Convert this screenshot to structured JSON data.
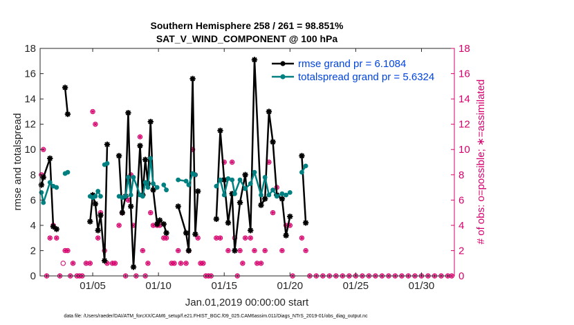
{
  "chart_data": {
    "type": "line",
    "title_line1": "Southern Hemisphere 258 / 261 = 98.851%",
    "title_line2": "SAT_V_WIND_COMPONENT @ 100 hPa",
    "xlabel": "Jan.01,2019 00:00:00 start",
    "ylabel_left": "rmse and totalspread",
    "ylabel_right": "# of obs: o=possible; ∗=assimilated",
    "xlim": [
      1,
      32.5
    ],
    "ylim": [
      0,
      18
    ],
    "ylim_right": [
      0,
      18
    ],
    "x_ticks": [
      5,
      10,
      15,
      20,
      25,
      30
    ],
    "x_tick_labels": [
      "01/05",
      "01/10",
      "01/15",
      "01/20",
      "01/25",
      "01/30"
    ],
    "y_ticks": [
      0,
      2,
      4,
      6,
      8,
      10,
      12,
      14,
      16,
      18
    ],
    "y_tick_labels": [
      "0",
      "2",
      "4",
      "6",
      "8",
      "10",
      "12",
      "14",
      "16",
      "18"
    ],
    "y_ticks_right": [
      0,
      2,
      4,
      6,
      8,
      10,
      12,
      14,
      16,
      18
    ],
    "y_tick_labels_right": [
      "0",
      "2",
      "4",
      "6",
      "8",
      "10",
      "12",
      "14",
      "16",
      "18"
    ],
    "legend": [
      "rmse grand pr = 6.1084",
      "totalspread grand pr = 5.6324"
    ],
    "series": [
      {
        "name": "rmse grand pr = 6.1084",
        "color": "#000000",
        "points": [
          [
            1.1,
            7.2
          ],
          [
            1.25,
            7.8
          ],
          [
            1.75,
            9.3
          ],
          [
            2.0,
            3.9
          ],
          [
            2.25,
            3.7
          ],
          [
            null,
            null
          ],
          [
            2.9,
            14.9
          ],
          [
            3.1,
            12.8
          ],
          [
            null,
            null
          ],
          [
            4.8,
            4.3
          ],
          [
            5.0,
            6.4
          ],
          [
            5.2,
            5.7
          ],
          [
            5.4,
            3.6
          ],
          [
            5.6,
            4.8
          ],
          [
            5.9,
            1.2
          ],
          [
            6.1,
            10.4
          ],
          [
            null,
            null
          ],
          [
            7.0,
            9.5
          ],
          [
            7.25,
            5.0
          ],
          [
            7.5,
            6.3
          ],
          [
            7.7,
            12.9
          ],
          [
            7.9,
            5.5
          ],
          [
            8.1,
            0.7
          ],
          [
            8.6,
            10.3
          ],
          [
            8.8,
            6.4
          ],
          [
            9.0,
            9.2
          ],
          [
            9.2,
            7.3
          ],
          [
            9.4,
            12.2
          ],
          [
            9.6,
            6.8
          ],
          [
            9.9,
            4.1
          ],
          [
            10.1,
            4.4
          ],
          [
            10.4,
            4.1
          ],
          [
            10.6,
            3.4
          ],
          [
            null,
            null
          ],
          [
            11.5,
            5.5
          ],
          [
            12.1,
            3.4
          ],
          [
            12.3,
            2.0
          ],
          [
            12.6,
            15.6
          ],
          [
            12.8,
            3.3
          ],
          [
            13.0,
            6.7
          ],
          [
            null,
            null
          ],
          [
            14.4,
            4.5
          ],
          [
            14.7,
            11.5
          ],
          [
            15.0,
            7.6
          ],
          [
            15.3,
            4.2
          ],
          [
            15.6,
            6.5
          ],
          [
            15.8,
            2.0
          ],
          [
            16.2,
            5.8
          ],
          [
            16.6,
            8.0
          ],
          [
            17.0,
            3.6
          ],
          [
            17.3,
            17.1
          ],
          [
            17.8,
            5.6
          ],
          [
            18.1,
            6.1
          ],
          [
            18.4,
            13.0
          ],
          [
            18.7,
            10.6
          ],
          [
            19.0,
            6.4
          ],
          [
            19.4,
            6.1
          ],
          [
            19.7,
            3.2
          ],
          [
            20.0,
            4.7
          ],
          [
            null,
            null
          ],
          [
            20.9,
            9.5
          ],
          [
            21.2,
            4.2
          ]
        ]
      },
      {
        "name": "totalspread grand pr = 5.6324",
        "color": "#008080",
        "points": [
          [
            1.1,
            6.6
          ],
          [
            1.25,
            5.8
          ],
          [
            1.75,
            7.4
          ],
          [
            2.0,
            7.1
          ],
          [
            2.25,
            7.0
          ],
          [
            null,
            null
          ],
          [
            2.9,
            8.1
          ],
          [
            3.1,
            8.2
          ],
          [
            null,
            null
          ],
          [
            4.8,
            6.3
          ],
          [
            5.0,
            6.2
          ],
          [
            5.2,
            6.3
          ],
          [
            5.4,
            6.7
          ],
          [
            5.6,
            6.3
          ],
          [
            null,
            null
          ],
          [
            5.9,
            8.8
          ],
          [
            6.1,
            8.9
          ],
          [
            null,
            null
          ],
          [
            7.0,
            6.3
          ],
          [
            7.25,
            6.2
          ],
          [
            7.5,
            6.3
          ],
          [
            7.7,
            7.8
          ],
          [
            7.9,
            6.4
          ],
          [
            8.1,
            7.8
          ],
          [
            8.6,
            6.4
          ],
          [
            8.8,
            6.3
          ],
          [
            9.0,
            7.4
          ],
          [
            9.2,
            7.0
          ],
          [
            9.4,
            9.3
          ],
          [
            9.6,
            7.3
          ],
          [
            9.9,
            7.0
          ],
          [
            null,
            null
          ],
          [
            10.4,
            7.2
          ],
          [
            10.6,
            6.8
          ],
          [
            null,
            null
          ],
          [
            11.5,
            7.6
          ],
          [
            12.1,
            7.5
          ],
          [
            12.3,
            7.2
          ],
          [
            12.6,
            8.1
          ],
          [
            12.8,
            8.0
          ],
          [
            null,
            null
          ],
          [
            14.4,
            7.1
          ],
          [
            14.7,
            7.6
          ],
          [
            15.0,
            6.4
          ],
          [
            15.3,
            7.7
          ],
          [
            15.6,
            7.6
          ],
          [
            15.8,
            6.5
          ],
          [
            16.2,
            7.6
          ],
          [
            16.6,
            6.9
          ],
          [
            17.0,
            7.3
          ],
          [
            17.3,
            8.2
          ],
          [
            17.8,
            6.4
          ],
          [
            18.1,
            7.8
          ],
          [
            18.4,
            6.4
          ],
          [
            18.7,
            6.8
          ],
          [
            19.0,
            6.3
          ],
          [
            19.4,
            6.5
          ],
          [
            19.7,
            6.4
          ],
          [
            20.0,
            6.6
          ],
          [
            null,
            null
          ],
          [
            20.9,
            8.2
          ],
          [
            21.2,
            8.7
          ]
        ]
      }
    ],
    "obs_possible": {
      "color": "#d6006c",
      "points": [
        [
          1.1,
          8
        ],
        [
          1.25,
          10
        ],
        [
          1.5,
          0
        ],
        [
          1.75,
          3
        ],
        [
          2.0,
          4
        ],
        [
          2.25,
          3
        ],
        [
          2.5,
          0
        ],
        [
          2.75,
          1
        ],
        [
          2.9,
          2
        ],
        [
          3.1,
          2
        ],
        [
          3.3,
          0
        ],
        [
          3.5,
          1
        ],
        [
          3.8,
          0
        ],
        [
          4.0,
          0
        ],
        [
          4.2,
          0
        ],
        [
          4.5,
          1
        ],
        [
          4.8,
          1
        ],
        [
          5.0,
          13
        ],
        [
          5.2,
          12
        ],
        [
          5.4,
          3
        ],
        [
          5.6,
          5
        ],
        [
          5.9,
          2
        ],
        [
          6.1,
          1
        ],
        [
          6.5,
          1
        ],
        [
          6.7,
          1
        ],
        [
          7.0,
          4
        ],
        [
          7.25,
          5
        ],
        [
          7.5,
          0
        ],
        [
          7.7,
          6
        ],
        [
          7.9,
          8
        ],
        [
          8.1,
          4
        ],
        [
          8.3,
          0
        ],
        [
          8.6,
          11
        ],
        [
          8.8,
          2
        ],
        [
          9.0,
          0
        ],
        [
          9.2,
          1
        ],
        [
          9.4,
          5
        ],
        [
          9.6,
          4
        ],
        [
          9.9,
          4
        ],
        [
          10.1,
          4
        ],
        [
          10.4,
          3
        ],
        [
          10.6,
          3
        ],
        [
          11.0,
          1
        ],
        [
          11.2,
          1
        ],
        [
          11.5,
          2
        ],
        [
          11.7,
          1
        ],
        [
          12.1,
          1
        ],
        [
          12.3,
          2
        ],
        [
          12.6,
          10
        ],
        [
          12.8,
          8
        ],
        [
          13.0,
          3
        ],
        [
          13.2,
          1
        ],
        [
          13.4,
          1
        ],
        [
          13.6,
          0
        ],
        [
          13.8,
          0
        ],
        [
          14.0,
          0
        ],
        [
          14.4,
          3
        ],
        [
          14.7,
          3
        ],
        [
          15.0,
          9
        ],
        [
          15.3,
          2
        ],
        [
          15.6,
          9
        ],
        [
          15.8,
          3
        ],
        [
          16.0,
          0
        ],
        [
          16.2,
          2
        ],
        [
          16.4,
          1
        ],
        [
          16.6,
          3
        ],
        [
          17.0,
          3
        ],
        [
          17.3,
          2
        ],
        [
          17.5,
          1
        ],
        [
          17.8,
          1
        ],
        [
          18.1,
          2
        ],
        [
          18.4,
          9
        ],
        [
          18.7,
          5
        ],
        [
          19.0,
          7
        ],
        [
          19.4,
          2
        ],
        [
          19.7,
          4
        ],
        [
          20.0,
          4
        ],
        [
          20.2,
          0
        ],
        [
          20.9,
          3
        ],
        [
          21.2,
          2
        ],
        [
          21.5,
          0
        ],
        [
          22,
          0
        ],
        [
          22.5,
          0
        ],
        [
          23,
          0
        ],
        [
          23.5,
          0
        ],
        [
          24,
          0
        ],
        [
          24.5,
          0
        ],
        [
          25,
          0
        ],
        [
          25.5,
          0
        ],
        [
          26,
          0
        ],
        [
          26.5,
          0
        ],
        [
          27,
          0
        ],
        [
          27.5,
          0
        ],
        [
          28,
          0
        ],
        [
          28.5,
          0
        ],
        [
          29,
          0
        ],
        [
          29.5,
          0
        ],
        [
          30,
          0
        ],
        [
          30.5,
          0
        ],
        [
          31,
          0
        ],
        [
          31.5,
          0
        ],
        [
          32,
          0
        ],
        [
          32.3,
          0
        ]
      ]
    },
    "obs_assimilated": {
      "color": "#d6006c",
      "points": [
        [
          1.1,
          8
        ],
        [
          1.25,
          10
        ],
        [
          1.5,
          0
        ],
        [
          1.75,
          3
        ],
        [
          2.0,
          4
        ],
        [
          2.25,
          3
        ],
        [
          2.5,
          0
        ],
        [
          2.9,
          2
        ],
        [
          3.1,
          2
        ],
        [
          3.3,
          0
        ],
        [
          3.5,
          1
        ],
        [
          3.8,
          0
        ],
        [
          4.0,
          0
        ],
        [
          4.2,
          0
        ],
        [
          4.5,
          1
        ],
        [
          4.8,
          1
        ],
        [
          5.0,
          13
        ],
        [
          5.2,
          12
        ],
        [
          5.4,
          3
        ],
        [
          5.6,
          5
        ],
        [
          5.9,
          2
        ],
        [
          6.1,
          1
        ],
        [
          6.5,
          1
        ],
        [
          6.7,
          1
        ],
        [
          7.0,
          4
        ],
        [
          7.25,
          5
        ],
        [
          7.5,
          0
        ],
        [
          7.7,
          6
        ],
        [
          7.9,
          8
        ],
        [
          8.1,
          4
        ],
        [
          8.3,
          0
        ],
        [
          8.6,
          11
        ],
        [
          8.8,
          2
        ],
        [
          9.0,
          0
        ],
        [
          9.2,
          1
        ],
        [
          9.4,
          5
        ],
        [
          9.6,
          4
        ],
        [
          9.9,
          4
        ],
        [
          10.1,
          4
        ],
        [
          10.4,
          3
        ],
        [
          10.6,
          3
        ],
        [
          11.0,
          1
        ],
        [
          11.2,
          1
        ],
        [
          11.5,
          2
        ],
        [
          11.7,
          1
        ],
        [
          12.1,
          1
        ],
        [
          12.3,
          2
        ],
        [
          12.6,
          10
        ],
        [
          12.8,
          8
        ],
        [
          13.0,
          3
        ],
        [
          13.2,
          1
        ],
        [
          13.4,
          1
        ],
        [
          13.6,
          0
        ],
        [
          13.8,
          0
        ],
        [
          14.0,
          0
        ],
        [
          14.4,
          3
        ],
        [
          14.7,
          3
        ],
        [
          15.0,
          9
        ],
        [
          15.3,
          2
        ],
        [
          15.6,
          9
        ],
        [
          16.0,
          0
        ],
        [
          16.2,
          2
        ],
        [
          16.4,
          1
        ],
        [
          16.6,
          3
        ],
        [
          17.0,
          3
        ],
        [
          17.3,
          2
        ],
        [
          17.5,
          1
        ],
        [
          17.8,
          1
        ],
        [
          18.1,
          2
        ],
        [
          18.4,
          9
        ],
        [
          18.7,
          5
        ],
        [
          19.0,
          7
        ],
        [
          19.4,
          2
        ],
        [
          19.7,
          4
        ],
        [
          20.0,
          4
        ],
        [
          20.2,
          0
        ],
        [
          20.9,
          3
        ],
        [
          21.2,
          2
        ],
        [
          21.5,
          0
        ],
        [
          22,
          0
        ],
        [
          22.5,
          0
        ],
        [
          23,
          0
        ],
        [
          23.5,
          0
        ],
        [
          24,
          0
        ],
        [
          24.5,
          0
        ],
        [
          25,
          0
        ],
        [
          25.5,
          0
        ],
        [
          26,
          0
        ],
        [
          26.5,
          0
        ],
        [
          27,
          0
        ],
        [
          27.5,
          0
        ],
        [
          28,
          0
        ],
        [
          28.5,
          0
        ],
        [
          29,
          0
        ],
        [
          29.5,
          0
        ],
        [
          30,
          0
        ],
        [
          30.5,
          0
        ],
        [
          31,
          0
        ],
        [
          31.5,
          0
        ],
        [
          32,
          0
        ],
        [
          32.3,
          0
        ]
      ]
    }
  },
  "footer": "data file: /Users/raeder/DAI/ATM_forcXX/CAM6_setup/f.e21.FHIST_BGC.f09_025.CAM6assim.011/Diags_NTrS_2019-01/obs_diag_output.nc"
}
